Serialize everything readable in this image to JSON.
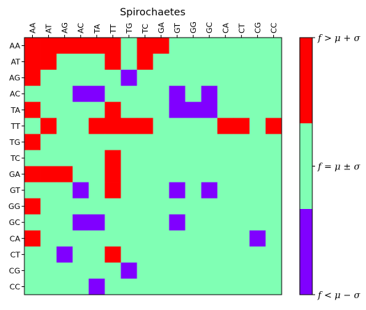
{
  "chart_data": {
    "type": "heatmap",
    "title": "Spirochaetes",
    "x_categories": [
      "AA",
      "AT",
      "AG",
      "AC",
      "TA",
      "TT",
      "TG",
      "TC",
      "GA",
      "GT",
      "GG",
      "GC",
      "CA",
      "CT",
      "CG",
      "CC"
    ],
    "y_categories": [
      "AA",
      "AT",
      "AG",
      "AC",
      "TA",
      "TT",
      "TG",
      "TC",
      "GA",
      "GT",
      "GG",
      "GC",
      "CA",
      "CT",
      "CG",
      "CC"
    ],
    "value_meaning": {
      "1": "f > mu + sigma",
      "0": "f = mu ± sigma",
      "-1": "f < mu - sigma"
    },
    "values": [
      [
        1,
        1,
        1,
        1,
        1,
        1,
        0,
        1,
        1,
        0,
        0,
        0,
        0,
        0,
        0,
        0
      ],
      [
        1,
        1,
        0,
        0,
        0,
        1,
        0,
        1,
        0,
        0,
        0,
        0,
        0,
        0,
        0,
        0
      ],
      [
        1,
        0,
        0,
        0,
        0,
        0,
        -1,
        0,
        0,
        0,
        0,
        0,
        0,
        0,
        0,
        0
      ],
      [
        0,
        0,
        0,
        -1,
        -1,
        0,
        0,
        0,
        0,
        -1,
        0,
        -1,
        0,
        0,
        0,
        0
      ],
      [
        1,
        0,
        0,
        0,
        0,
        1,
        0,
        0,
        0,
        -1,
        -1,
        -1,
        0,
        0,
        0,
        0
      ],
      [
        0,
        1,
        0,
        0,
        1,
        1,
        1,
        1,
        0,
        0,
        0,
        0,
        1,
        1,
        0,
        1
      ],
      [
        1,
        0,
        0,
        0,
        0,
        0,
        0,
        0,
        0,
        0,
        0,
        0,
        0,
        0,
        0,
        0
      ],
      [
        0,
        0,
        0,
        0,
        0,
        1,
        0,
        0,
        0,
        0,
        0,
        0,
        0,
        0,
        0,
        0
      ],
      [
        1,
        1,
        1,
        0,
        0,
        1,
        0,
        0,
        0,
        0,
        0,
        0,
        0,
        0,
        0,
        0
      ],
      [
        0,
        0,
        0,
        -1,
        0,
        1,
        0,
        0,
        0,
        -1,
        0,
        -1,
        0,
        0,
        0,
        0
      ],
      [
        1,
        0,
        0,
        0,
        0,
        0,
        0,
        0,
        0,
        0,
        0,
        0,
        0,
        0,
        0,
        0
      ],
      [
        0,
        0,
        0,
        -1,
        -1,
        0,
        0,
        0,
        0,
        -1,
        0,
        0,
        0,
        0,
        0,
        0
      ],
      [
        1,
        0,
        0,
        0,
        0,
        0,
        0,
        0,
        0,
        0,
        0,
        0,
        0,
        0,
        -1,
        0
      ],
      [
        0,
        0,
        -1,
        0,
        0,
        1,
        0,
        0,
        0,
        0,
        0,
        0,
        0,
        0,
        0,
        0
      ],
      [
        0,
        0,
        0,
        0,
        0,
        0,
        -1,
        0,
        0,
        0,
        0,
        0,
        0,
        0,
        0,
        0
      ],
      [
        0,
        0,
        0,
        0,
        -1,
        0,
        0,
        0,
        0,
        0,
        0,
        0,
        0,
        0,
        0,
        0
      ]
    ],
    "colors": {
      "high": "#ff0000",
      "mid": "#80ffb4",
      "low": "#8000ff"
    },
    "colorbar": {
      "labels": [
        "f > μ + σ",
        "f = μ ± σ",
        "f < μ − σ"
      ]
    }
  }
}
